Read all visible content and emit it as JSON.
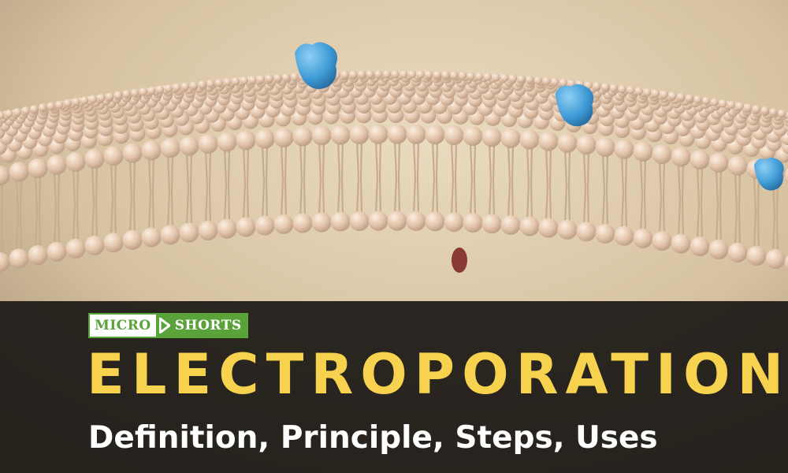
{
  "image": {
    "subject": "cell-membrane-lipid-bilayer",
    "colors": {
      "background": "#d9c6a6",
      "lipid_head": "#e8cbb2",
      "protein": "#4fa6dc",
      "band": "#1c1916"
    }
  },
  "logo": {
    "left_text": "MICRO",
    "right_text": "SHORTS",
    "colors": {
      "green": "#5aa33a",
      "white": "#ffffff"
    }
  },
  "title": "ELECTROPORATION",
  "subtitle": "Definition, Principle, Steps, Uses",
  "colors": {
    "title": "#f7d24e",
    "subtitle": "#ffffff"
  }
}
